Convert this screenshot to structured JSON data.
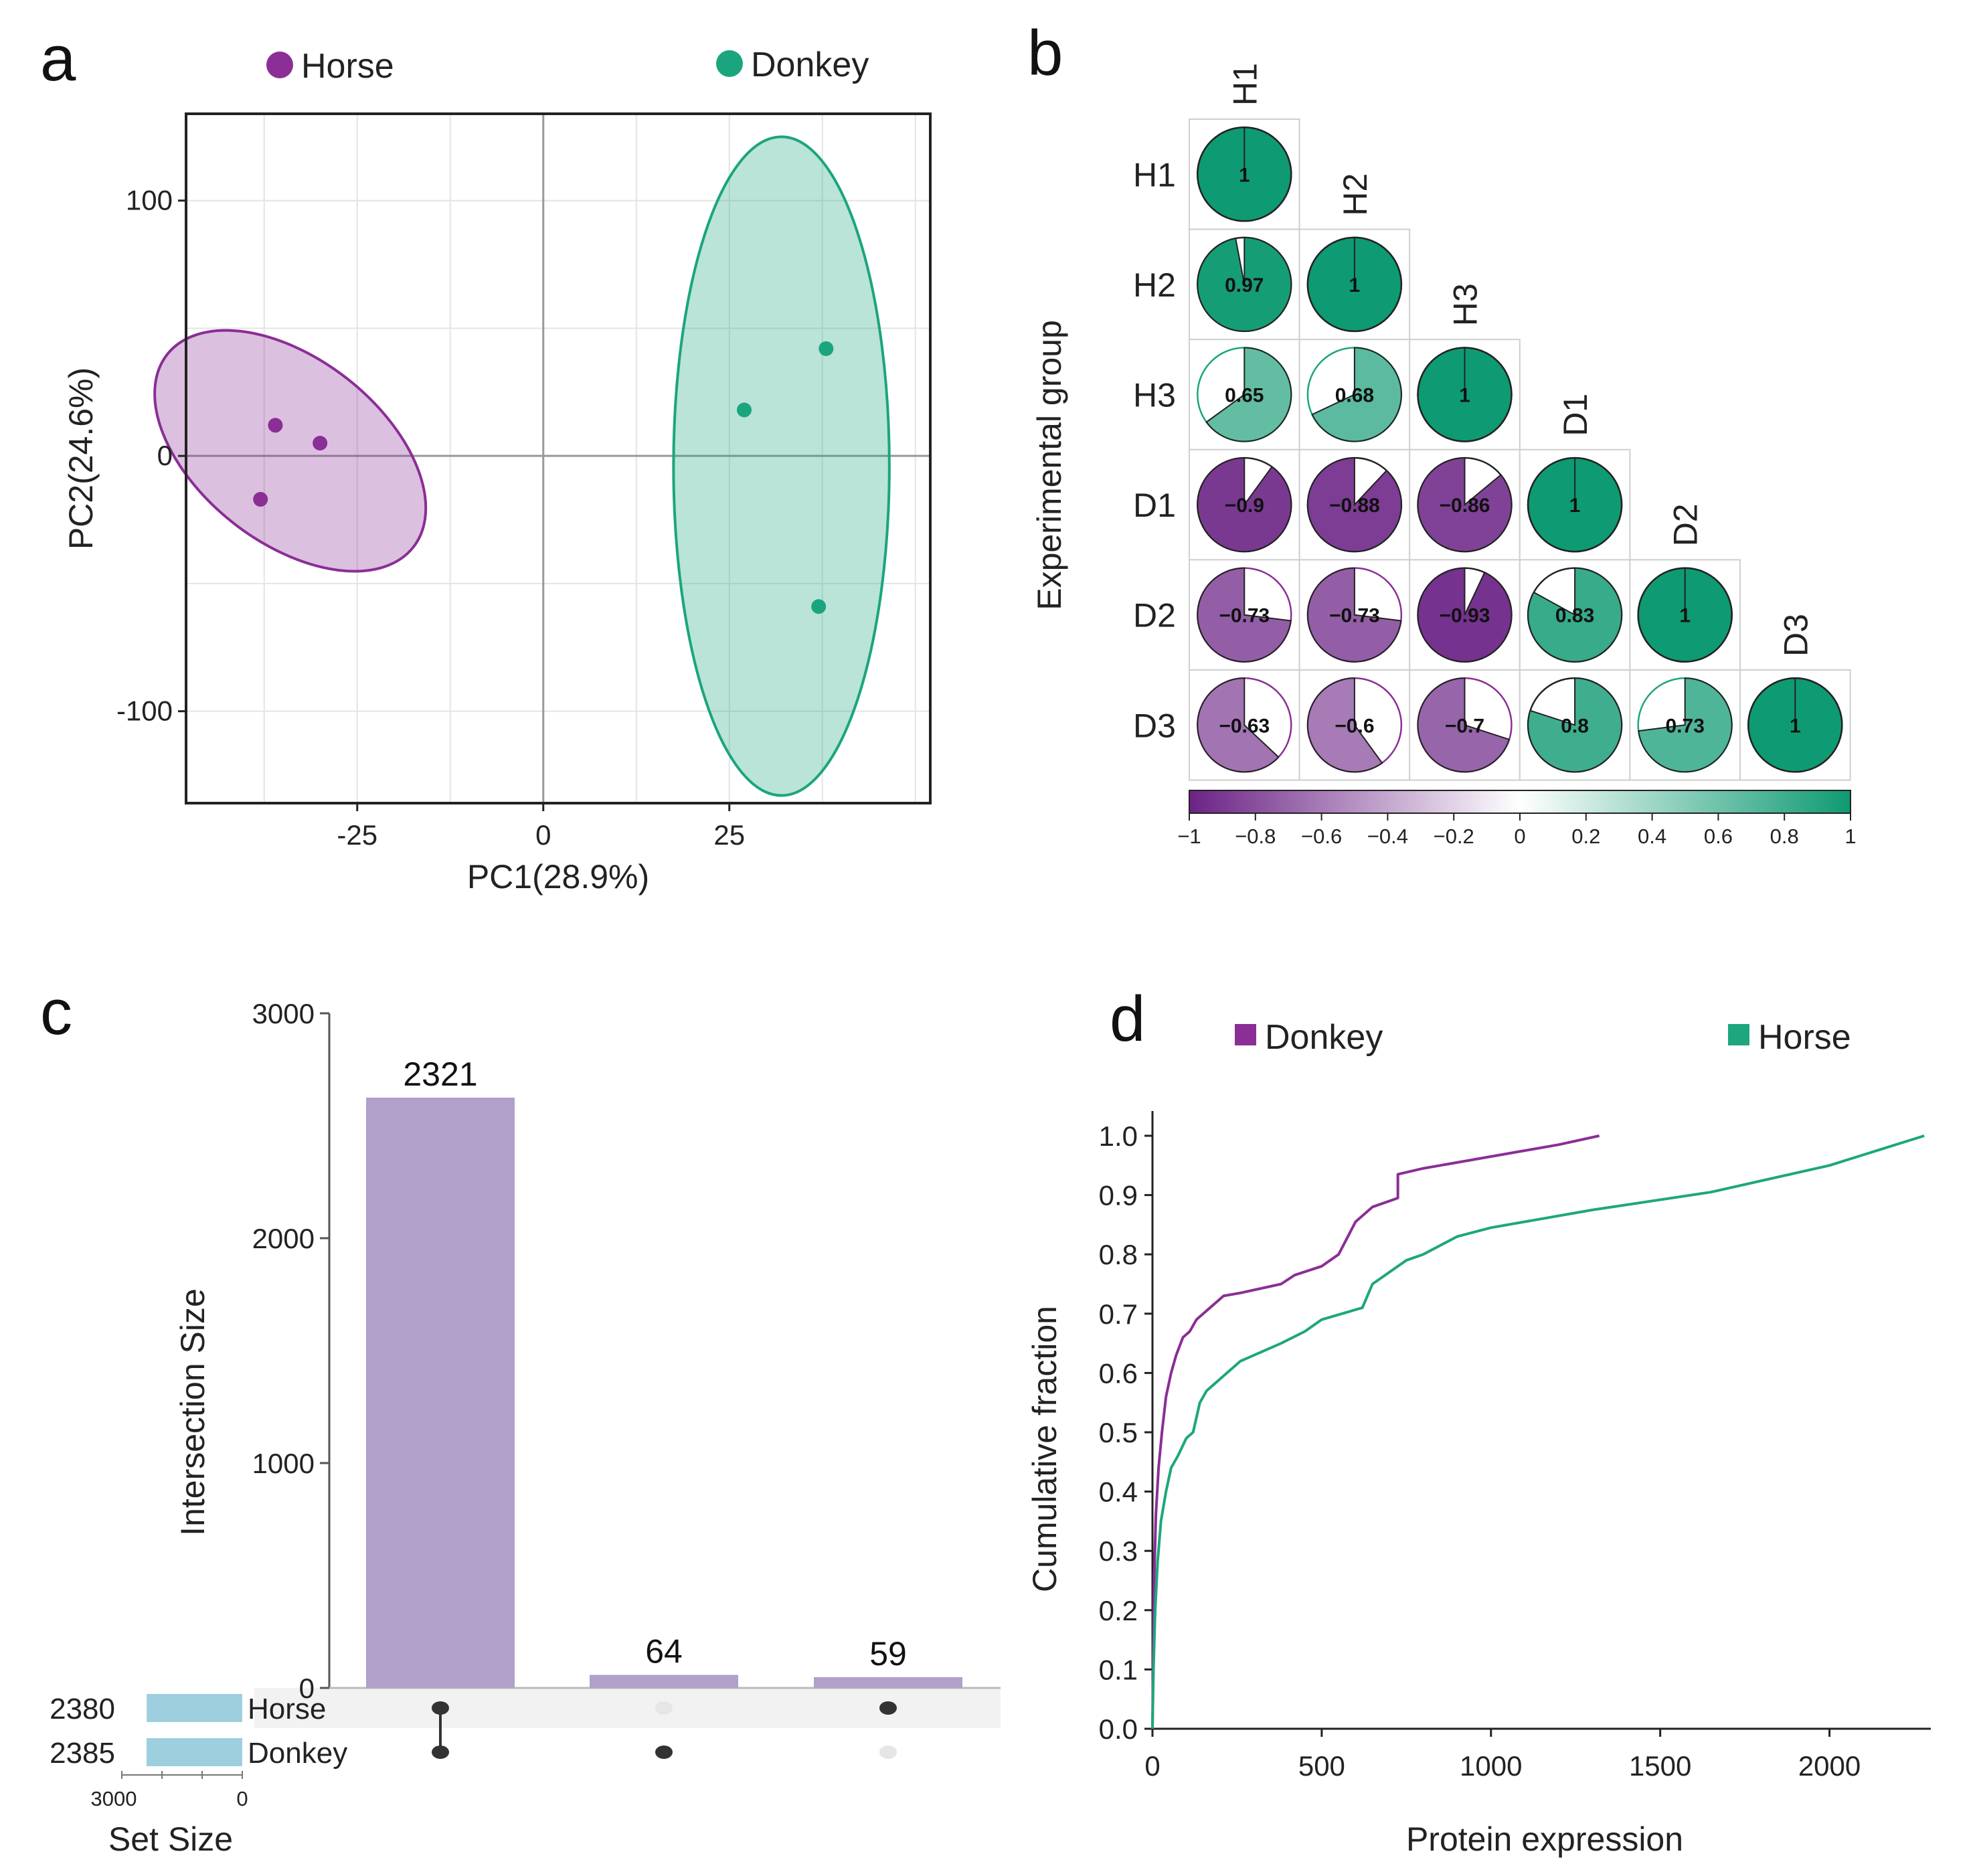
{
  "panels": {
    "a": {
      "label": "a"
    },
    "b": {
      "label": "b"
    },
    "c": {
      "label": "c"
    },
    "d": {
      "label": "d"
    }
  },
  "colors": {
    "horse_a": "#8B2E96",
    "donkey_a": "#1BA57E",
    "purple_line": "#8B2E96",
    "green_line": "#1EA67C",
    "upset_bar": "#B0A0CA",
    "set_bar": "#9ECFDE"
  },
  "chart_data": [
    {
      "id": "pca",
      "type": "scatter",
      "xlabel": "PC1(28.9%)",
      "ylabel": "PC2(24.6%)",
      "xlim": [
        -48,
        52
      ],
      "ylim": [
        -136,
        134
      ],
      "xticks": [
        -25,
        0,
        25
      ],
      "xtick_labels": [
        "-25",
        "0",
        "25"
      ],
      "yticks": [
        100,
        0,
        -100
      ],
      "ytick_labels": [
        "100",
        "0",
        "-100"
      ],
      "legend": [
        {
          "name": "Horse",
          "color": "#8B2E96"
        },
        {
          "name": "Donkey",
          "color": "#1BA57E"
        }
      ],
      "series": [
        {
          "name": "Horse",
          "points": [
            {
              "x": -36,
              "y": 12
            },
            {
              "x": -30,
              "y": 5
            },
            {
              "x": -38,
              "y": -17
            }
          ],
          "ellipse": {
            "cx": -34,
            "cy": 2,
            "rx": 21,
            "ry": 36,
            "rotation_deg": 38
          }
        },
        {
          "name": "Donkey",
          "points": [
            {
              "x": 27,
              "y": 18
            },
            {
              "x": 38,
              "y": 42
            },
            {
              "x": 37,
              "y": -59
            }
          ],
          "ellipse": {
            "cx": 32,
            "cy": -4,
            "rx": 14.5,
            "ry": 129,
            "rotation_deg": 0
          }
        }
      ]
    },
    {
      "id": "correlation",
      "type": "heatmap",
      "ylabel": "Experimental group",
      "labels": [
        "H1",
        "H2",
        "H3",
        "D1",
        "D2",
        "D3"
      ],
      "lower_triangle": [
        [
          1
        ],
        [
          0.97,
          1
        ],
        [
          0.65,
          0.68,
          1
        ],
        [
          -0.9,
          -0.88,
          -0.86,
          1
        ],
        [
          -0.73,
          -0.73,
          -0.93,
          0.83,
          1
        ],
        [
          -0.63,
          -0.6,
          -0.7,
          0.8,
          0.73,
          1
        ]
      ],
      "value_labels": [
        [
          "1"
        ],
        [
          "0.97",
          "1"
        ],
        [
          "0.65",
          "0.68",
          "1"
        ],
        [
          "−0.9",
          "−0.88",
          "−0.86",
          "1"
        ],
        [
          "−0.73",
          "−0.73",
          "−0.93",
          "0.83",
          "1"
        ],
        [
          "−0.63",
          "−0.6",
          "−0.7",
          "0.8",
          "0.73",
          "1"
        ]
      ],
      "colorbar": {
        "range": [
          -1,
          1
        ],
        "ticks": [
          -1,
          -0.8,
          -0.6,
          -0.4,
          -0.2,
          0,
          0.2,
          0.4,
          0.6,
          0.8,
          1
        ],
        "tick_labels": [
          "−1",
          "−0.8",
          "−0.6",
          "−0.4",
          "−0.2",
          "0",
          "0.2",
          "0.4",
          "0.6",
          "0.8",
          "1"
        ]
      }
    },
    {
      "id": "upset",
      "type": "bar",
      "ylabel": "Intersection Size",
      "ylim": [
        0,
        3000
      ],
      "yticks": [
        0,
        1000,
        2000,
        3000
      ],
      "ytick_labels": [
        "0",
        "1000",
        "2000",
        "3000"
      ],
      "bars": [
        {
          "value": 2321,
          "drawn_height": 2625,
          "label": "2321",
          "members": [
            "Horse",
            "Donkey"
          ]
        },
        {
          "value": 64,
          "drawn_height": 58,
          "label": "64",
          "members": [
            "Donkey"
          ]
        },
        {
          "value": 59,
          "drawn_height": 48,
          "label": "59",
          "members": [
            "Horse"
          ]
        }
      ],
      "sets": [
        {
          "name": "Horse",
          "size": 2380,
          "size_label": "2380"
        },
        {
          "name": "Donkey",
          "size": 2385,
          "size_label": "2385"
        }
      ],
      "set_size_axis": {
        "title": "Set Size",
        "range": [
          3000,
          0
        ],
        "tick_labels": [
          "3000",
          "0"
        ]
      }
    },
    {
      "id": "cumulative",
      "type": "line",
      "xlabel": "Protein expression",
      "ylabel": "Cumulative fraction",
      "xlim": [
        0,
        2300
      ],
      "ylim": [
        0,
        1.05
      ],
      "xticks": [
        0,
        500,
        1000,
        1500,
        2000
      ],
      "xtick_labels": [
        "0",
        "500",
        "1000",
        "1500",
        "2000"
      ],
      "yticks": [
        0,
        0.1,
        0.2,
        0.3,
        0.4,
        0.5,
        0.6,
        0.7,
        0.8,
        0.9,
        1.0
      ],
      "ytick_labels": [
        "0.0",
        "0.1",
        "0.2",
        "0.3",
        "0.4",
        "0.5",
        "0.6",
        "0.7",
        "0.8",
        "0.9",
        "1.0"
      ],
      "legend": [
        {
          "name": "Donkey",
          "color": "#8B2E96"
        },
        {
          "name": "Horse",
          "color": "#1EA67C"
        }
      ],
      "series": [
        {
          "name": "Donkey",
          "x": [
            0,
            2,
            5,
            10,
            18,
            28,
            40,
            55,
            70,
            90,
            110,
            130,
            150,
            170,
            190,
            210,
            260,
            300,
            380,
            420,
            500,
            550,
            600,
            650,
            700,
            725,
            725,
            800,
            900,
            1000,
            1100,
            1200,
            1320
          ],
          "y": [
            0,
            0.12,
            0.25,
            0.36,
            0.44,
            0.5,
            0.56,
            0.6,
            0.63,
            0.66,
            0.67,
            0.69,
            0.7,
            0.71,
            0.72,
            0.73,
            0.735,
            0.74,
            0.75,
            0.765,
            0.78,
            0.8,
            0.855,
            0.88,
            0.89,
            0.895,
            0.935,
            0.945,
            0.955,
            0.965,
            0.975,
            0.985,
            1.0
          ]
        },
        {
          "name": "Horse",
          "x": [
            0,
            3,
            8,
            15,
            25,
            40,
            55,
            75,
            100,
            120,
            140,
            160,
            180,
            220,
            260,
            300,
            380,
            450,
            500,
            560,
            620,
            650,
            700,
            750,
            800,
            900,
            1000,
            1300,
            1650,
            2000,
            2280
          ],
          "y": [
            0,
            0.1,
            0.2,
            0.28,
            0.35,
            0.4,
            0.44,
            0.46,
            0.49,
            0.5,
            0.55,
            0.57,
            0.58,
            0.6,
            0.62,
            0.63,
            0.65,
            0.67,
            0.69,
            0.7,
            0.71,
            0.75,
            0.77,
            0.79,
            0.8,
            0.83,
            0.845,
            0.875,
            0.905,
            0.95,
            1.0
          ]
        }
      ]
    }
  ]
}
